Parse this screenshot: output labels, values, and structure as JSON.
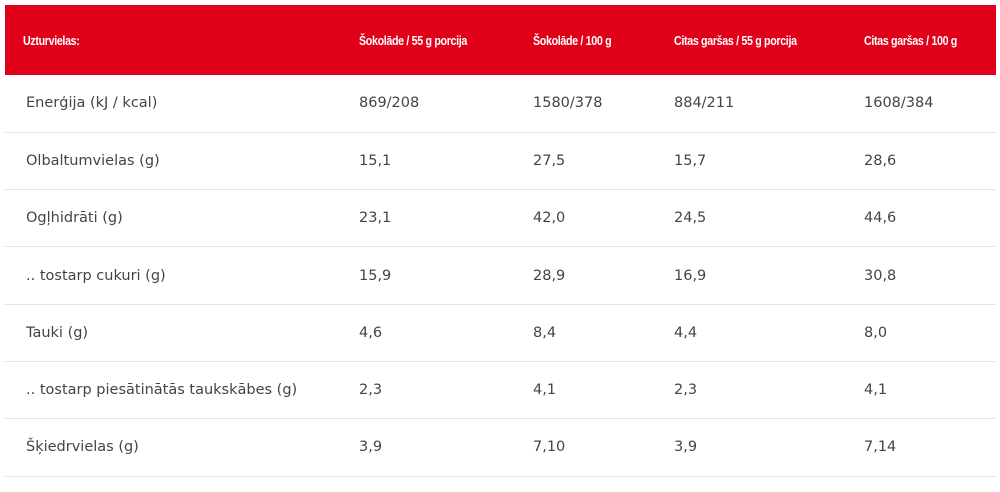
{
  "table": {
    "headers": [
      "Uzturvielas:",
      "Šokolāde / 55 g porcija",
      "Šokolāde / 100 g",
      "Citas garšas / 55 g porcija",
      "Citas garšas / 100 g"
    ],
    "rows": [
      [
        "Enerģija (kJ / kcal)",
        "869/208",
        "1580/378",
        "884/211",
        "1608/384"
      ],
      [
        "Olbaltumvielas (g)",
        "15,1",
        "27,5",
        "15,7",
        "28,6"
      ],
      [
        "Ogļhidrāti (g)",
        "23,1",
        "42,0",
        "24,5",
        "44,6"
      ],
      [
        ".. tostarp cukuri (g)",
        "15,9",
        "28,9",
        "16,9",
        "30,8"
      ],
      [
        "Tauki (g)",
        "4,6",
        "8,4",
        "4,4",
        "8,0"
      ],
      [
        ".. tostarp piesātinātās taukskābes (g)",
        "2,3",
        "4,1",
        "2,3",
        "4,1"
      ],
      [
        "Šķiedrvielas (g)",
        "3,9",
        "7,10",
        "3,9",
        "7,14"
      ]
    ]
  },
  "colors": {
    "header_bg": "#e0001a",
    "header_text": "#ffffff",
    "body_text": "#444444",
    "row_divider": "#e3e3e3"
  }
}
